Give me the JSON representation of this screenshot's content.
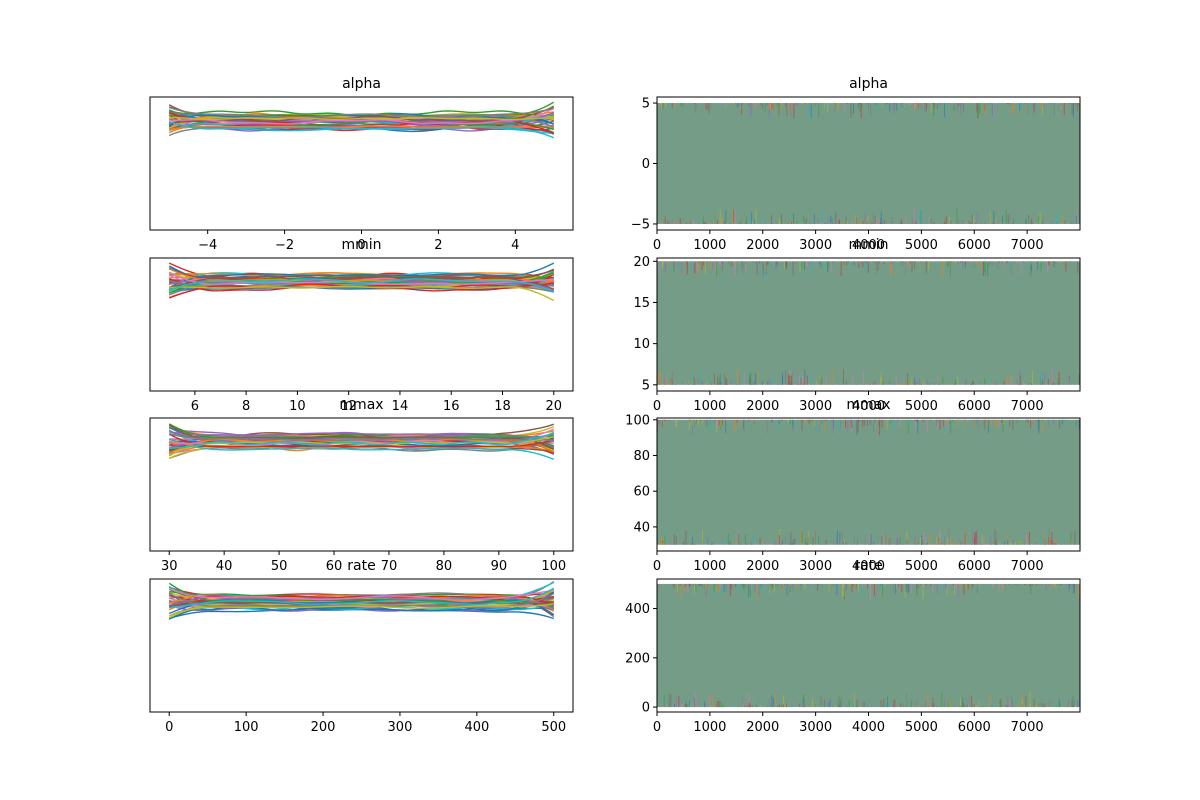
{
  "chart_data": [
    {
      "type": "line",
      "subtype": "kde-density",
      "title": "alpha",
      "xlim": [
        -5.5,
        5.5
      ],
      "ylim": [
        0,
        1
      ],
      "xticks": [
        -4,
        -2,
        0,
        2,
        4
      ],
      "xtick_labels": [
        "−4",
        "−2",
        "0",
        "2",
        "4"
      ],
      "yticks": [],
      "data_range": [
        -5,
        5
      ],
      "band_center": 0.82,
      "band_halfwidth": 0.06,
      "edge_spread": 0.1,
      "num_curves": 40
    },
    {
      "type": "line",
      "subtype": "trace",
      "title": "alpha",
      "xlim": [
        0,
        8000
      ],
      "ylim": [
        -5.5,
        5.5
      ],
      "xticks": [
        0,
        1000,
        2000,
        3000,
        4000,
        5000,
        6000,
        7000
      ],
      "xtick_labels": [
        "0",
        "1000",
        "2000",
        "3000",
        "4000",
        "5000",
        "6000",
        "7000"
      ],
      "yticks": [
        -5,
        0,
        5
      ],
      "ytick_labels": [
        "−5",
        "0",
        "5"
      ],
      "sample_range": [
        -5,
        5
      ],
      "fill_color": "#749c87",
      "num_draws": 8000
    },
    {
      "type": "line",
      "subtype": "kde-density",
      "title": "mmin",
      "xlim": [
        4.25,
        20.75
      ],
      "ylim": [
        0,
        1
      ],
      "xticks": [
        6,
        8,
        10,
        12,
        14,
        16,
        18,
        20
      ],
      "xtick_labels": [
        "6",
        "8",
        "10",
        "12",
        "14",
        "16",
        "18",
        "20"
      ],
      "yticks": [],
      "data_range": [
        5,
        20
      ],
      "band_center": 0.82,
      "band_halfwidth": 0.06,
      "edge_spread": 0.1,
      "num_curves": 40
    },
    {
      "type": "line",
      "subtype": "trace",
      "title": "mmin",
      "xlim": [
        0,
        8000
      ],
      "ylim": [
        4.25,
        20.4
      ],
      "xticks": [
        0,
        1000,
        2000,
        3000,
        4000,
        5000,
        6000,
        7000
      ],
      "xtick_labels": [
        "0",
        "1000",
        "2000",
        "3000",
        "4000",
        "5000",
        "6000",
        "7000"
      ],
      "yticks": [
        5,
        10,
        15,
        20
      ],
      "ytick_labels": [
        "5",
        "10",
        "15",
        "20"
      ],
      "sample_range": [
        5,
        20
      ],
      "fill_color": "#749c87",
      "num_draws": 8000
    },
    {
      "type": "line",
      "subtype": "kde-density",
      "title": "mmax",
      "xlim": [
        26.5,
        103.5
      ],
      "ylim": [
        0,
        1
      ],
      "xticks": [
        30,
        40,
        50,
        60,
        70,
        80,
        90,
        100
      ],
      "xtick_labels": [
        "30",
        "40",
        "50",
        "60",
        "70",
        "80",
        "90",
        "100"
      ],
      "yticks": [],
      "data_range": [
        30,
        100
      ],
      "band_center": 0.82,
      "band_halfwidth": 0.06,
      "edge_spread": 0.1,
      "num_curves": 40
    },
    {
      "type": "line",
      "subtype": "trace",
      "title": "mmax",
      "xlim": [
        0,
        8000
      ],
      "ylim": [
        26.5,
        101
      ],
      "xticks": [
        0,
        1000,
        2000,
        3000,
        4000,
        5000,
        6000,
        7000
      ],
      "xtick_labels": [
        "0",
        "1000",
        "2000",
        "3000",
        "4000",
        "5000",
        "6000",
        "7000"
      ],
      "yticks": [
        40,
        60,
        80,
        100
      ],
      "ytick_labels": [
        "40",
        "60",
        "80",
        "100"
      ],
      "sample_range": [
        30,
        100
      ],
      "fill_color": "#749c87",
      "num_draws": 8000
    },
    {
      "type": "line",
      "subtype": "kde-density",
      "title": "rate",
      "xlim": [
        -25,
        525
      ],
      "ylim": [
        0,
        1
      ],
      "xticks": [
        0,
        100,
        200,
        300,
        400,
        500
      ],
      "xtick_labels": [
        "0",
        "100",
        "200",
        "300",
        "400",
        "500"
      ],
      "yticks": [],
      "data_range": [
        0,
        500
      ],
      "band_center": 0.82,
      "band_halfwidth": 0.06,
      "edge_spread": 0.12,
      "num_curves": 40
    },
    {
      "type": "line",
      "subtype": "trace",
      "title": "rate",
      "xlim": [
        0,
        8000
      ],
      "ylim": [
        -20,
        520
      ],
      "xticks": [
        0,
        1000,
        2000,
        3000,
        4000,
        5000,
        6000,
        7000
      ],
      "xtick_labels": [
        "0",
        "1000",
        "2000",
        "3000",
        "4000",
        "5000",
        "6000",
        "7000"
      ],
      "yticks": [
        0,
        200,
        400
      ],
      "ytick_labels": [
        "0",
        "200",
        "400"
      ],
      "sample_range": [
        0,
        500
      ],
      "fill_color": "#749c87",
      "num_draws": 8000
    }
  ],
  "palette": [
    "#1f77b4",
    "#ff7f0e",
    "#2ca02c",
    "#d62728",
    "#9467bd",
    "#8c564b",
    "#e377c2",
    "#7f7f7f",
    "#bcbd22",
    "#17becf"
  ]
}
